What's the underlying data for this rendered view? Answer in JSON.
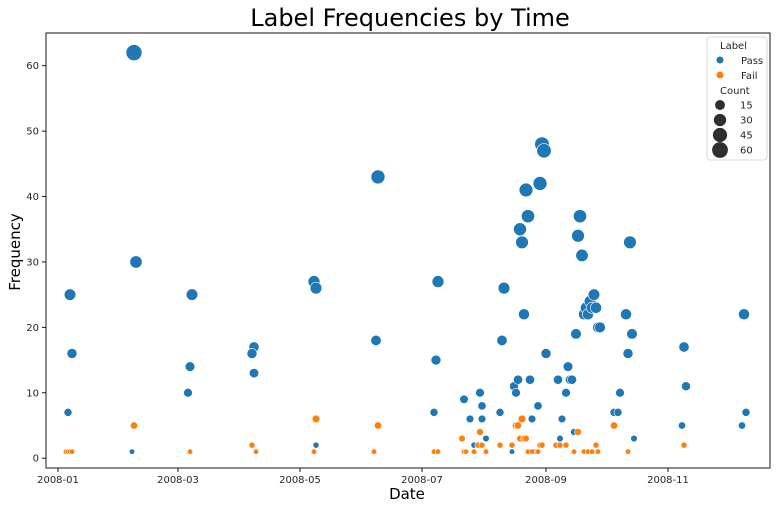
{
  "chart_data": {
    "type": "scatter",
    "title": "Label Frequencies by Time",
    "xlabel": "Date",
    "ylabel": "Frequency",
    "x_ticks": [
      "2008-01",
      "2008-03",
      "2008-05",
      "2008-07",
      "2008-09",
      "2008-11"
    ],
    "y_ticks": [
      0,
      10,
      20,
      30,
      40,
      50,
      60
    ],
    "xlim": [
      "2007-12-26",
      "2008-12-22"
    ],
    "ylim": [
      -1.5,
      65
    ],
    "grid": false,
    "size_encoding": "Count",
    "legend": {
      "placement": "top-right",
      "hue_title": "Label",
      "size_title": "Count",
      "size_levels": [
        15,
        30,
        45,
        60
      ]
    },
    "series": [
      {
        "name": "Pass",
        "color": "#1f77b4",
        "points": [
          {
            "x": "2008-01-07",
            "y": 25
          },
          {
            "x": "2008-01-08",
            "y": 16
          },
          {
            "x": "2008-01-06",
            "y": 7
          },
          {
            "x": "2008-02-08",
            "y": 62
          },
          {
            "x": "2008-02-09",
            "y": 30
          },
          {
            "x": "2008-02-07",
            "y": 1
          },
          {
            "x": "2008-03-08",
            "y": 25
          },
          {
            "x": "2008-03-07",
            "y": 14
          },
          {
            "x": "2008-03-06",
            "y": 10
          },
          {
            "x": "2008-04-08",
            "y": 17
          },
          {
            "x": "2008-04-07",
            "y": 16
          },
          {
            "x": "2008-04-08",
            "y": 13
          },
          {
            "x": "2008-05-08",
            "y": 27
          },
          {
            "x": "2008-05-09",
            "y": 26
          },
          {
            "x": "2008-05-09",
            "y": 2
          },
          {
            "x": "2008-06-09",
            "y": 43
          },
          {
            "x": "2008-06-08",
            "y": 18
          },
          {
            "x": "2008-07-09",
            "y": 27
          },
          {
            "x": "2008-07-08",
            "y": 15
          },
          {
            "x": "2008-07-07",
            "y": 7
          },
          {
            "x": "2008-07-22",
            "y": 9
          },
          {
            "x": "2008-07-25",
            "y": 6
          },
          {
            "x": "2008-07-27",
            "y": 2
          },
          {
            "x": "2008-07-30",
            "y": 10
          },
          {
            "x": "2008-07-31",
            "y": 6
          },
          {
            "x": "2008-07-31",
            "y": 8
          },
          {
            "x": "2008-08-02",
            "y": 3
          },
          {
            "x": "2008-08-09",
            "y": 7
          },
          {
            "x": "2008-08-10",
            "y": 18
          },
          {
            "x": "2008-08-11",
            "y": 26
          },
          {
            "x": "2008-08-15",
            "y": 1
          },
          {
            "x": "2008-08-16",
            "y": 11
          },
          {
            "x": "2008-08-17",
            "y": 10
          },
          {
            "x": "2008-08-18",
            "y": 12
          },
          {
            "x": "2008-08-19",
            "y": 35
          },
          {
            "x": "2008-08-20",
            "y": 33
          },
          {
            "x": "2008-08-21",
            "y": 22
          },
          {
            "x": "2008-08-22",
            "y": 41
          },
          {
            "x": "2008-08-23",
            "y": 37
          },
          {
            "x": "2008-08-24",
            "y": 12
          },
          {
            "x": "2008-08-25",
            "y": 6
          },
          {
            "x": "2008-08-26",
            "y": 1
          },
          {
            "x": "2008-08-28",
            "y": 8
          },
          {
            "x": "2008-08-29",
            "y": 42
          },
          {
            "x": "2008-08-30",
            "y": 48
          },
          {
            "x": "2008-08-31",
            "y": 47
          },
          {
            "x": "2008-09-01",
            "y": 16
          },
          {
            "x": "2008-09-07",
            "y": 12
          },
          {
            "x": "2008-09-08",
            "y": 3
          },
          {
            "x": "2008-09-09",
            "y": 6
          },
          {
            "x": "2008-09-11",
            "y": 10
          },
          {
            "x": "2008-09-12",
            "y": 14
          },
          {
            "x": "2008-09-13",
            "y": 12
          },
          {
            "x": "2008-09-14",
            "y": 12
          },
          {
            "x": "2008-09-15",
            "y": 4
          },
          {
            "x": "2008-09-16",
            "y": 19
          },
          {
            "x": "2008-09-17",
            "y": 34
          },
          {
            "x": "2008-09-18",
            "y": 37
          },
          {
            "x": "2008-09-19",
            "y": 31
          },
          {
            "x": "2008-09-20",
            "y": 22
          },
          {
            "x": "2008-09-21",
            "y": 23
          },
          {
            "x": "2008-09-22",
            "y": 22
          },
          {
            "x": "2008-09-23",
            "y": 24
          },
          {
            "x": "2008-09-24",
            "y": 23
          },
          {
            "x": "2008-09-25",
            "y": 25
          },
          {
            "x": "2008-09-26",
            "y": 23
          },
          {
            "x": "2008-09-27",
            "y": 20
          },
          {
            "x": "2008-09-28",
            "y": 20
          },
          {
            "x": "2008-10-05",
            "y": 7
          },
          {
            "x": "2008-10-07",
            "y": 7
          },
          {
            "x": "2008-10-08",
            "y": 10
          },
          {
            "x": "2008-10-11",
            "y": 22
          },
          {
            "x": "2008-10-12",
            "y": 16
          },
          {
            "x": "2008-10-13",
            "y": 33
          },
          {
            "x": "2008-10-14",
            "y": 19
          },
          {
            "x": "2008-10-15",
            "y": 3
          },
          {
            "x": "2008-11-09",
            "y": 17
          },
          {
            "x": "2008-11-10",
            "y": 11
          },
          {
            "x": "2008-11-08",
            "y": 5
          },
          {
            "x": "2008-12-09",
            "y": 22
          },
          {
            "x": "2008-12-10",
            "y": 7
          },
          {
            "x": "2008-12-08",
            "y": 5
          }
        ]
      },
      {
        "name": "Fail",
        "color": "#ff7f0e",
        "points": [
          {
            "x": "2008-01-05",
            "y": 1
          },
          {
            "x": "2008-01-06",
            "y": 1
          },
          {
            "x": "2008-01-07",
            "y": 1
          },
          {
            "x": "2008-01-08",
            "y": 1
          },
          {
            "x": "2008-02-08",
            "y": 5
          },
          {
            "x": "2008-03-07",
            "y": 1
          },
          {
            "x": "2008-04-07",
            "y": 2
          },
          {
            "x": "2008-04-09",
            "y": 1
          },
          {
            "x": "2008-05-08",
            "y": 1
          },
          {
            "x": "2008-05-09",
            "y": 6
          },
          {
            "x": "2008-06-07",
            "y": 1
          },
          {
            "x": "2008-06-09",
            "y": 5
          },
          {
            "x": "2008-07-07",
            "y": 1
          },
          {
            "x": "2008-07-09",
            "y": 1
          },
          {
            "x": "2008-07-21",
            "y": 3
          },
          {
            "x": "2008-07-22",
            "y": 1
          },
          {
            "x": "2008-07-23",
            "y": 1
          },
          {
            "x": "2008-07-27",
            "y": 1
          },
          {
            "x": "2008-07-29",
            "y": 2
          },
          {
            "x": "2008-07-30",
            "y": 4
          },
          {
            "x": "2008-07-31",
            "y": 2
          },
          {
            "x": "2008-08-02",
            "y": 1
          },
          {
            "x": "2008-08-09",
            "y": 2
          },
          {
            "x": "2008-08-15",
            "y": 2
          },
          {
            "x": "2008-08-17",
            "y": 5
          },
          {
            "x": "2008-08-18",
            "y": 5
          },
          {
            "x": "2008-08-19",
            "y": 3
          },
          {
            "x": "2008-08-20",
            "y": 6
          },
          {
            "x": "2008-08-21",
            "y": 3
          },
          {
            "x": "2008-08-22",
            "y": 3
          },
          {
            "x": "2008-08-23",
            "y": 1
          },
          {
            "x": "2008-08-25",
            "y": 1
          },
          {
            "x": "2008-08-28",
            "y": 1
          },
          {
            "x": "2008-08-29",
            "y": 2
          },
          {
            "x": "2008-08-30",
            "y": 2
          },
          {
            "x": "2008-09-06",
            "y": 2
          },
          {
            "x": "2008-09-08",
            "y": 2
          },
          {
            "x": "2008-09-11",
            "y": 2
          },
          {
            "x": "2008-09-15",
            "y": 1
          },
          {
            "x": "2008-09-17",
            "y": 4
          },
          {
            "x": "2008-09-20",
            "y": 1
          },
          {
            "x": "2008-09-22",
            "y": 1
          },
          {
            "x": "2008-09-24",
            "y": 1
          },
          {
            "x": "2008-09-26",
            "y": 2
          },
          {
            "x": "2008-09-27",
            "y": 1
          },
          {
            "x": "2008-10-05",
            "y": 5
          },
          {
            "x": "2008-10-12",
            "y": 1
          },
          {
            "x": "2008-11-09",
            "y": 2
          }
        ]
      }
    ]
  }
}
